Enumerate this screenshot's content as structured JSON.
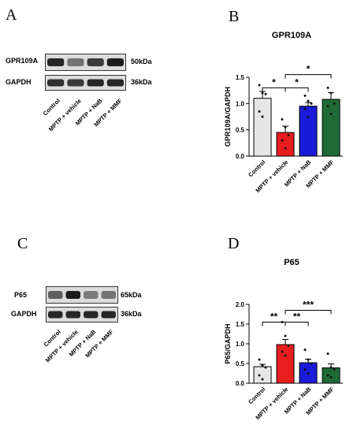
{
  "panels": {
    "A": {
      "letter": "A",
      "blots": [
        {
          "label": "GPR109A",
          "kda": "50kDa",
          "intensity": [
            0.85,
            0.45,
            0.75,
            0.9
          ]
        },
        {
          "label": "GAPDH",
          "kda": "36kDa",
          "intensity": [
            0.8,
            0.75,
            0.85,
            0.85
          ]
        }
      ],
      "lanes": [
        "Control",
        "MPTP + vehicle",
        "MPTP + NaB",
        "MPTP + MMF"
      ]
    },
    "C": {
      "letter": "C",
      "blots": [
        {
          "label": "P65",
          "kda": "65kDa",
          "intensity": [
            0.55,
            0.9,
            0.4,
            0.45
          ]
        },
        {
          "label": "GAPDH",
          "kda": "36kDa",
          "intensity": [
            0.85,
            0.85,
            0.85,
            0.85
          ]
        }
      ],
      "lanes": [
        "Control",
        "MPTP + vehicle",
        "MPTP + NaB",
        "MPTP + MMF"
      ]
    },
    "B": {
      "letter": "B"
    },
    "D": {
      "letter": "D"
    }
  },
  "chart_data": [
    {
      "type": "bar",
      "title": "GPR109A",
      "ylabel": "GPR109A/GAPDH",
      "xlabel": "",
      "ylim": [
        0,
        1.5
      ],
      "yticks": [
        "0.0",
        "0.5",
        "1.0",
        "1.5"
      ],
      "categories": [
        "Control",
        "MPTP + vehicle",
        "MPTP + NaB",
        "MPTP + MMF"
      ],
      "values": [
        1.1,
        0.45,
        0.95,
        1.08
      ],
      "errors": [
        0.13,
        0.12,
        0.07,
        0.13
      ],
      "colors": [
        "#e6e6e6",
        "#e81e1e",
        "#1b1bd9",
        "#1f6b35"
      ],
      "points": [
        [
          1.35,
          1.2,
          1.18,
          0.85,
          0.75
        ],
        [
          0.7,
          0.55,
          0.4,
          0.3,
          0.15
        ],
        [
          1.15,
          1.05,
          1.0,
          0.9,
          0.75
        ],
        [
          1.3,
          1.2,
          1.0,
          0.95,
          0.8
        ]
      ],
      "significance": [
        {
          "from": 0,
          "to": 1,
          "label": "*",
          "level": 1.3
        },
        {
          "from": 1,
          "to": 2,
          "label": "*",
          "level": 1.3
        },
        {
          "from": 1,
          "to": 3,
          "label": "*",
          "level": 1.55
        }
      ]
    },
    {
      "type": "bar",
      "title": "P65",
      "ylabel": "P65/GAPDH",
      "xlabel": "",
      "ylim": [
        0,
        2.0
      ],
      "yticks": [
        "0.0",
        "0.5",
        "1.0",
        "1.5",
        "2.0"
      ],
      "categories": [
        "Control",
        "MPTP + vehicle",
        "MPTP + NaB",
        "MPTP + MMF"
      ],
      "values": [
        0.42,
        0.98,
        0.52,
        0.39
      ],
      "errors": [
        0.06,
        0.13,
        0.09,
        0.1
      ],
      "colors": [
        "#e6e6e6",
        "#e81e1e",
        "#1b1bd9",
        "#1f6b35"
      ],
      "points": [
        [
          0.6,
          0.45,
          0.4,
          0.2,
          0.1
        ],
        [
          1.55,
          1.2,
          0.95,
          0.8,
          0.7
        ],
        [
          0.85,
          0.6,
          0.5,
          0.35,
          0.25
        ],
        [
          0.75,
          0.4,
          0.35,
          0.2,
          0.15
        ]
      ],
      "significance": [
        {
          "from": 0,
          "to": 1,
          "label": "**",
          "level": 1.55
        },
        {
          "from": 1,
          "to": 2,
          "label": "**",
          "level": 1.55
        },
        {
          "from": 1,
          "to": 3,
          "label": "***",
          "level": 1.85
        }
      ]
    }
  ]
}
